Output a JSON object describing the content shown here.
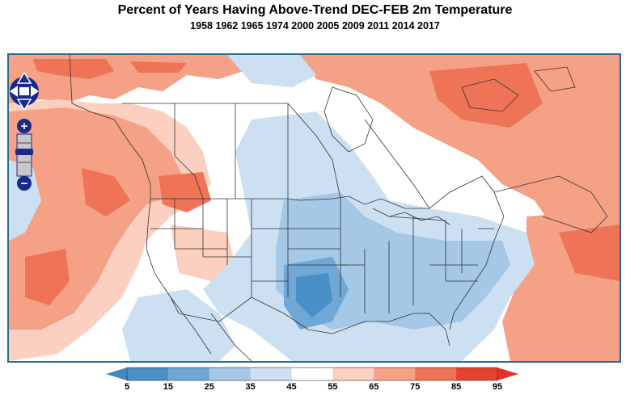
{
  "header": {
    "title": "Percent of Years Having Above-Trend DEC-FEB 2m Temperature",
    "subtitle": "1958 1962 1965 1974 2000 2005 2009 2011 2014 2017"
  },
  "map_controls": {
    "pan": [
      "pan-up",
      "pan-down",
      "pan-left",
      "pan-right"
    ],
    "zoom_in_label": "+",
    "zoom_out_label": "−",
    "zoom_levels": 4
  },
  "legend": {
    "ticks": [
      "5",
      "15",
      "25",
      "35",
      "45",
      "55",
      "65",
      "75",
      "85",
      "95"
    ],
    "colors": [
      "#4a90c8",
      "#6fa7d6",
      "#a5c8e6",
      "#cde0f2",
      "#ffffff",
      "#fbd0c0",
      "#f5a186",
      "#ef7356",
      "#e8422e"
    ],
    "arrow_low_color": "#3f8ac6",
    "arrow_high_color": "#e4312a"
  },
  "map_colors": {
    "warm_light": "#fbd0c0",
    "warm_mid": "#f5a186",
    "warm_strong": "#ef7356",
    "cool_light": "#cde0f2",
    "cool_mid": "#a5c8e6",
    "cool_strong": "#6fa7d6",
    "cool_deep": "#4a90c8",
    "border": "#2b6d8e",
    "boundary_line": "#333333"
  }
}
